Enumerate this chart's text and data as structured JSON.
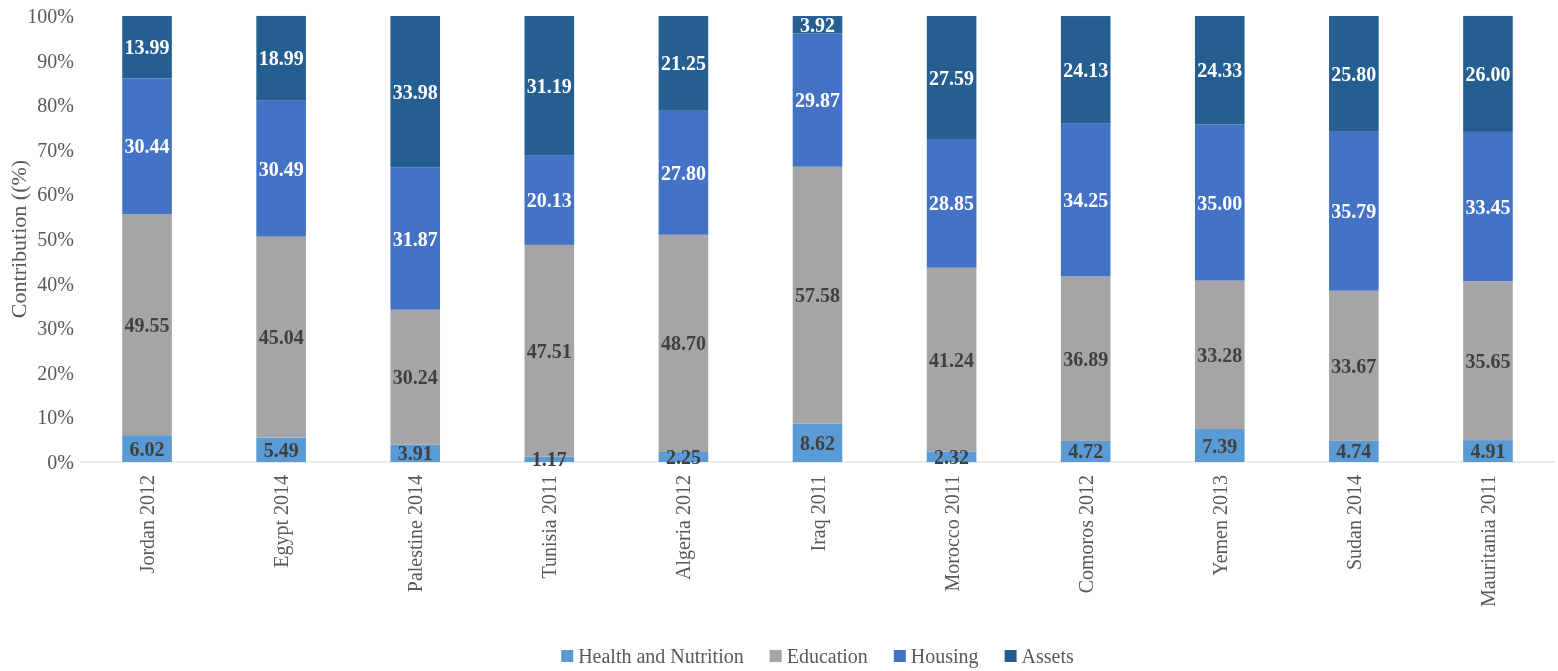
{
  "chart_data": {
    "type": "bar",
    "stacked": true,
    "ylabel": "Contribution ((%)",
    "categories": [
      "Jordan 2012",
      "Egypt 2014",
      "Palestine 2014",
      "Tunisia 2011",
      "Algeria 2012",
      "Iraq 2011",
      "Morocco 2011",
      "Comoros 2012",
      "Yemen 2013",
      "Sudan 2014",
      "Mauritania 2011"
    ],
    "series": [
      {
        "name": "Health and Nutrition",
        "color": "#5b9bd5",
        "values": [
          6.02,
          5.49,
          3.91,
          1.17,
          2.25,
          8.62,
          2.32,
          4.72,
          7.39,
          4.74,
          4.91
        ],
        "value_labels": [
          "6.02",
          "5.49",
          "3.91",
          "1.17",
          "2.25",
          "8.62",
          "2.32",
          "4.72",
          "7.39",
          "4.74",
          "4.91"
        ]
      },
      {
        "name": "Education",
        "color": "#a5a5a5",
        "values": [
          49.55,
          45.04,
          30.24,
          47.51,
          48.7,
          57.58,
          41.24,
          36.89,
          33.28,
          33.67,
          35.65
        ],
        "value_labels": [
          "49.55",
          "45.04",
          "30.24",
          "47.51",
          "48.70",
          "57.58",
          "41.24",
          "36.89",
          "33.28",
          "33.67",
          "35.65"
        ]
      },
      {
        "name": "Housing",
        "color": "#4472c4",
        "values": [
          30.44,
          30.49,
          31.87,
          20.13,
          27.8,
          29.87,
          28.85,
          34.25,
          35.0,
          35.79,
          33.45
        ],
        "value_labels": [
          "30.44",
          "30.49",
          "31.87",
          "20.13",
          "27.80",
          "29.87",
          "28.85",
          "34.25",
          "35.00",
          "35.79",
          "33.45"
        ]
      },
      {
        "name": "Assets",
        "color": "#255e91",
        "values": [
          13.99,
          18.99,
          33.98,
          31.19,
          21.25,
          3.92,
          27.59,
          24.13,
          24.33,
          25.8,
          26.0
        ],
        "value_labels": [
          "13.99",
          "18.99",
          "33.98",
          "31.19",
          "21.25",
          "3.92",
          "27.59",
          "24.13",
          "24.33",
          "25.80",
          "26.00"
        ]
      }
    ],
    "ylim": [
      0,
      100
    ],
    "yticks": [
      {
        "value": 0,
        "label": "0%"
      },
      {
        "value": 10,
        "label": "10%"
      },
      {
        "value": 20,
        "label": "20%"
      },
      {
        "value": 30,
        "label": "30%"
      },
      {
        "value": 40,
        "label": "40%"
      },
      {
        "value": 50,
        "label": "50%"
      },
      {
        "value": 60,
        "label": "60%"
      },
      {
        "value": 70,
        "label": "70%"
      },
      {
        "value": 80,
        "label": "80%"
      },
      {
        "value": 90,
        "label": "90%"
      },
      {
        "value": 100,
        "label": "100%"
      }
    ],
    "legend": "bottom"
  }
}
